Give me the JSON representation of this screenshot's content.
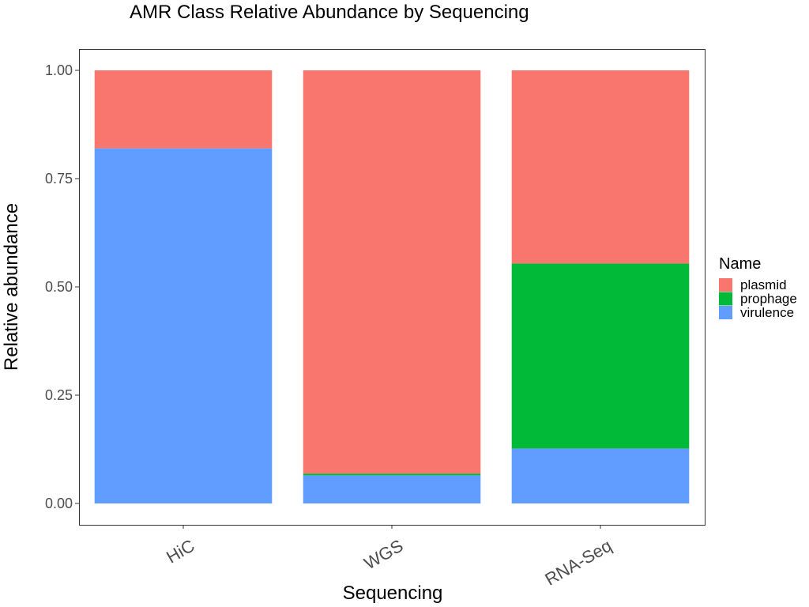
{
  "chart_data": {
    "type": "bar",
    "stacked": true,
    "title": "AMR Class Relative Abundance by Sequencing",
    "xlabel": "Sequencing",
    "ylabel": "Relative abundance",
    "categories": [
      "HiC",
      "WGS",
      "RNA-Seq"
    ],
    "y_ticks": [
      "0.00",
      "0.25",
      "0.50",
      "0.75",
      "1.00"
    ],
    "y_tick_values": [
      0,
      0.25,
      0.5,
      0.75,
      1.0
    ],
    "ylim": [
      0,
      1.05
    ],
    "grid": false,
    "legend": {
      "title": "Name",
      "position": "right"
    },
    "series": [
      {
        "name": "virulence",
        "color": "#619CFF",
        "values": [
          0.82,
          0.065,
          0.127
        ]
      },
      {
        "name": "prophage",
        "color": "#00BA38",
        "values": [
          0.0,
          0.004,
          0.427
        ]
      },
      {
        "name": "plasmid",
        "color": "#F8766D",
        "values": [
          0.18,
          0.931,
          0.446
        ]
      }
    ],
    "legend_order": [
      "plasmid",
      "prophage",
      "virulence"
    ]
  }
}
